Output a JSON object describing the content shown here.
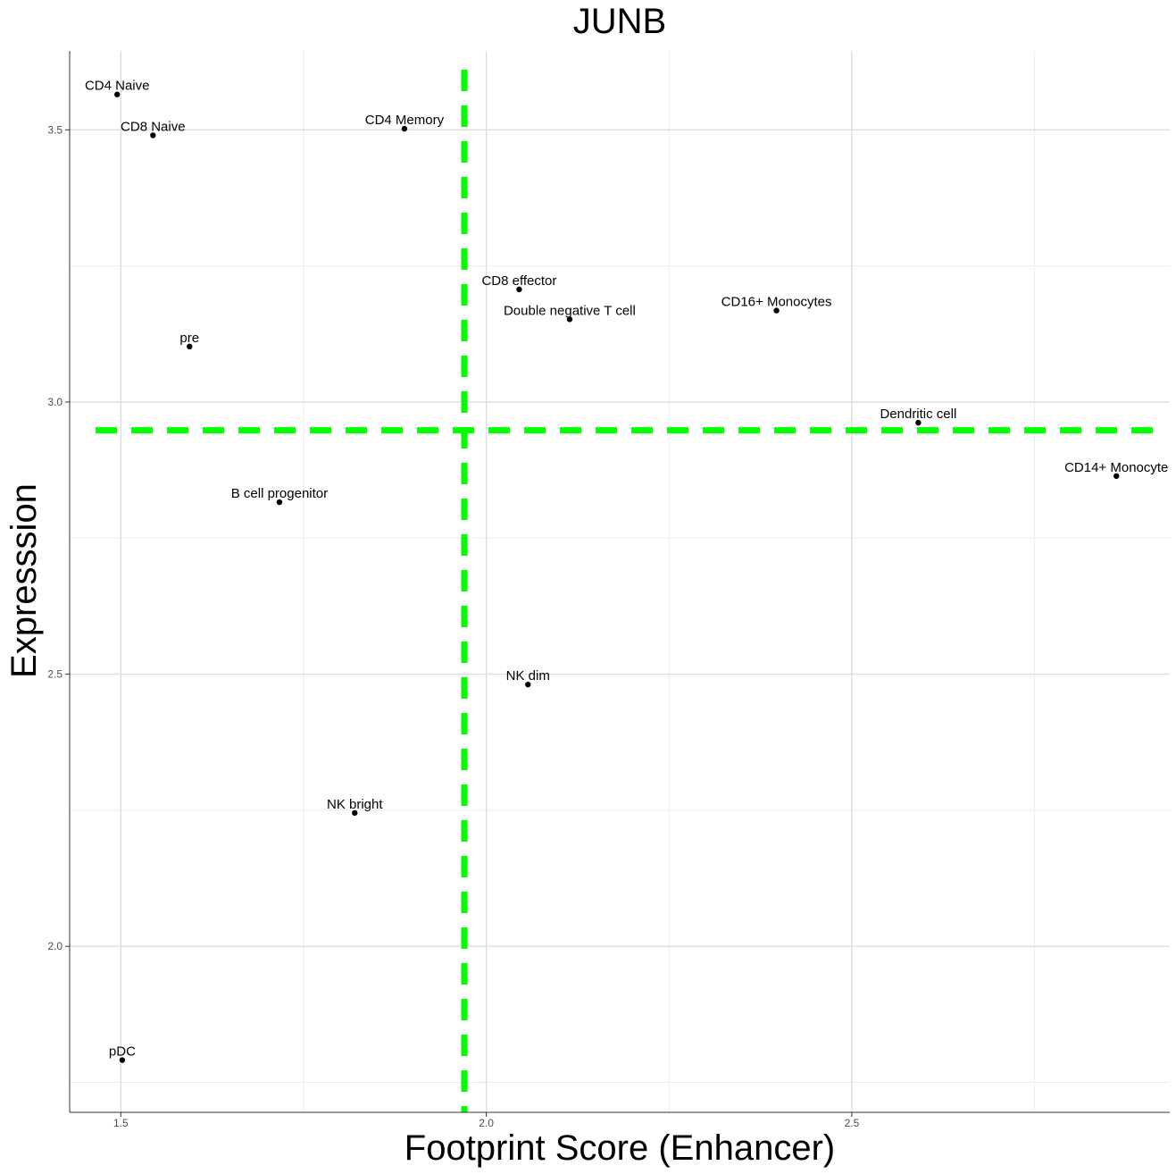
{
  "chart_data": {
    "type": "scatter",
    "title": "JUNB",
    "xlabel": "Footprint Score (Enhancer)",
    "ylabel": "Expresssion",
    "xlim": [
      1.43,
      2.935
    ],
    "ylim": [
      1.695,
      3.645
    ],
    "x_ticks": [
      1.5,
      2.0,
      2.5
    ],
    "x_tick_labels": [
      "1.5",
      "2.0",
      "2.5"
    ],
    "y_ticks": [
      2.0,
      2.5,
      3.0,
      3.5
    ],
    "y_tick_labels": [
      "2.0",
      "2.5",
      "3.0",
      "3.5"
    ],
    "x_minor_ticks": [
      1.75,
      2.25,
      2.75
    ],
    "y_minor_ticks": [
      1.75,
      2.25,
      2.75,
      3.25
    ],
    "grid": true,
    "points": [
      {
        "label": "CD4 Naive",
        "x": 1.495,
        "y": 3.565
      },
      {
        "label": "CD8 Naive",
        "x": 1.544,
        "y": 3.49
      },
      {
        "label": "CD4 Memory",
        "x": 1.888,
        "y": 3.502
      },
      {
        "label": "CD8 effector",
        "x": 2.045,
        "y": 3.207
      },
      {
        "label": "Double negative T cell",
        "x": 2.114,
        "y": 3.152
      },
      {
        "label": "CD16+ Monocytes",
        "x": 2.397,
        "y": 3.168
      },
      {
        "label": "pre",
        "x": 1.594,
        "y": 3.102
      },
      {
        "label": "Dendritic cell",
        "x": 2.591,
        "y": 2.962
      },
      {
        "label": "CD14+ Monocyte",
        "x": 2.862,
        "y": 2.864
      },
      {
        "label": "B cell progenitor",
        "x": 1.717,
        "y": 2.816
      },
      {
        "label": "NK dim",
        "x": 2.057,
        "y": 2.481
      },
      {
        "label": "NK bright",
        "x": 1.82,
        "y": 2.245
      },
      {
        "label": "pDC",
        "x": 1.502,
        "y": 1.791
      }
    ],
    "reference_lines": [
      {
        "orientation": "vertical",
        "x": 1.97,
        "color": "#00ff00",
        "style": "dashed"
      },
      {
        "orientation": "horizontal",
        "y": 2.948,
        "color": "#00ff00",
        "style": "dashed"
      }
    ]
  }
}
